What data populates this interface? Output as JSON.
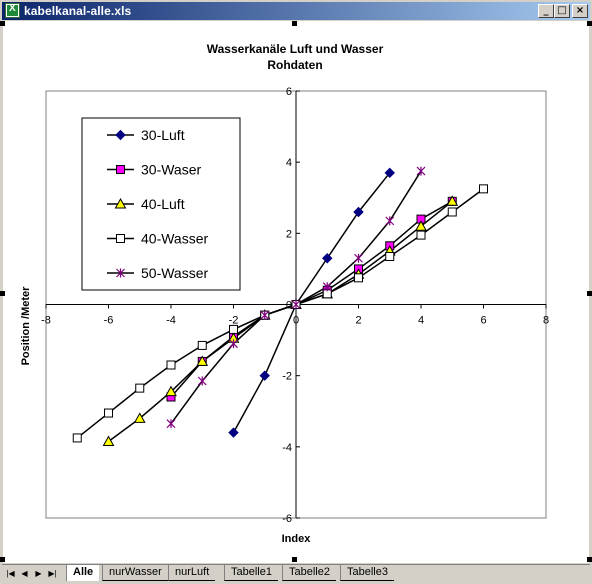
{
  "window": {
    "title": "kabelkanal-alle.xls"
  },
  "sheet_tabs": [
    "Alle",
    "nurWasser",
    "nurLuft",
    "Tabelle1",
    "Tabelle2",
    "Tabelle3"
  ],
  "active_tab": "Alle",
  "colors": {
    "titlebar_start": "#0a246a",
    "titlebar_end": "#a6caf0"
  },
  "chart_data": {
    "type": "scatter",
    "title": "Wasserkanäle Luft und Wasser",
    "subtitle": "Rohdaten",
    "xlabel": "Index",
    "ylabel": "Position /Meter",
    "xlim": [
      -8,
      8
    ],
    "ylim": [
      -6,
      6
    ],
    "xticks": [
      "-8",
      "-6",
      "-4",
      "-2",
      "0",
      "2",
      "4",
      "6",
      "8"
    ],
    "yticks": [
      "-6",
      "-4",
      "-2",
      "0",
      "2",
      "4",
      "6"
    ],
    "legend_position": "top-left",
    "grid": false,
    "series": [
      {
        "name": "30-Luft",
        "marker": "diamond",
        "color": "#000080",
        "fill": "#000080",
        "points": [
          [
            -2,
            -3.6
          ],
          [
            -1,
            -2.0
          ],
          [
            0,
            0
          ],
          [
            1,
            1.3
          ],
          [
            2,
            2.6
          ],
          [
            3,
            3.7
          ]
        ]
      },
      {
        "name": "30-Waser",
        "marker": "square",
        "color": "#000000",
        "fill": "#ff00ff",
        "points": [
          [
            -4,
            -2.6
          ],
          [
            -3,
            -1.6
          ],
          [
            -2,
            -0.9
          ],
          [
            -1,
            -0.3
          ],
          [
            0,
            0
          ],
          [
            1,
            0.4
          ],
          [
            2,
            1.0
          ],
          [
            3,
            1.65
          ],
          [
            4,
            2.4
          ],
          [
            5,
            2.9
          ]
        ]
      },
      {
        "name": "40-Luft",
        "marker": "triangle",
        "color": "#000000",
        "fill": "#ffff00",
        "points": [
          [
            -6,
            -3.85
          ],
          [
            -5,
            -3.2
          ],
          [
            -4,
            -2.45
          ],
          [
            -3,
            -1.6
          ],
          [
            -2,
            -0.95
          ],
          [
            -1,
            -0.3
          ],
          [
            0,
            0
          ],
          [
            1,
            0.3
          ],
          [
            2,
            0.85
          ],
          [
            3,
            1.5
          ],
          [
            4,
            2.2
          ],
          [
            5,
            2.9
          ]
        ]
      },
      {
        "name": "40-Wasser",
        "marker": "square-open",
        "color": "#000000",
        "fill": "#ffffff",
        "points": [
          [
            -7,
            -3.75
          ],
          [
            -6,
            -3.05
          ],
          [
            -5,
            -2.35
          ],
          [
            -4,
            -1.7
          ],
          [
            -3,
            -1.15
          ],
          [
            -2,
            -0.7
          ],
          [
            -1,
            -0.3
          ],
          [
            0,
            0
          ],
          [
            1,
            0.3
          ],
          [
            2,
            0.75
          ],
          [
            3,
            1.35
          ],
          [
            4,
            1.95
          ],
          [
            5,
            2.6
          ],
          [
            6,
            3.25
          ]
        ]
      },
      {
        "name": "50-Wasser",
        "marker": "star",
        "color": "#800080",
        "fill": "none",
        "points": [
          [
            -4,
            -3.35
          ],
          [
            -3,
            -2.15
          ],
          [
            -2,
            -1.1
          ],
          [
            -1,
            -0.3
          ],
          [
            0,
            0
          ],
          [
            1,
            0.5
          ],
          [
            2,
            1.3
          ],
          [
            3,
            2.35
          ],
          [
            4,
            3.75
          ]
        ]
      }
    ]
  }
}
